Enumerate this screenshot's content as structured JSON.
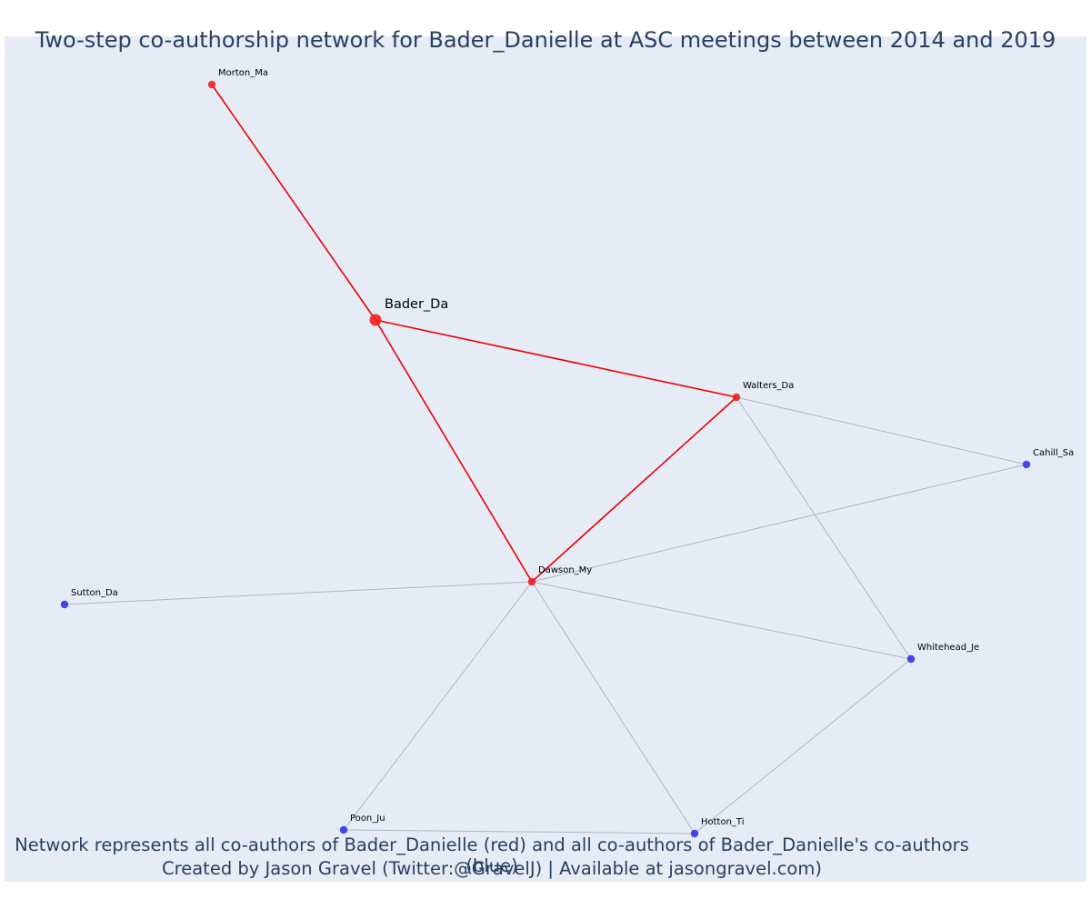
{
  "title": "Two-step co-authorship network for Bader_Danielle at ASC meetings between 2014 and 2019",
  "captions": [
    "Network represents all co-authors of Bader_Danielle (red) and all co-authors of Bader_Danielle's co-authors (blue)",
    "Created by Jason Gravel (Twitter:@GravelJ) | Available at jasongravel.com)"
  ],
  "colors": {
    "background": "#e5ecf6",
    "first_step": "#ee2222",
    "second_step": "#3333ee",
    "first_step_edge": "#ee0000",
    "second_step_edge": "#b0b4c8",
    "text": "#2a3f5f"
  },
  "nodes": [
    {
      "id": "Bader_Da",
      "group": "focus"
    },
    {
      "id": "Morton_Ma",
      "group": "first_step"
    },
    {
      "id": "Walters_Da",
      "group": "first_step"
    },
    {
      "id": "Dawson_My",
      "group": "first_step"
    },
    {
      "id": "Cahill_Sa",
      "group": "second_step"
    },
    {
      "id": "Sutton_Da",
      "group": "second_step"
    },
    {
      "id": "Whitehead_Je",
      "group": "second_step"
    },
    {
      "id": "Poon_Ju",
      "group": "second_step"
    },
    {
      "id": "Hotton_Ti",
      "group": "second_step"
    }
  ],
  "edges": [
    {
      "source": "Bader_Da",
      "target": "Morton_Ma",
      "group": "first_step"
    },
    {
      "source": "Bader_Da",
      "target": "Walters_Da",
      "group": "first_step"
    },
    {
      "source": "Bader_Da",
      "target": "Dawson_My",
      "group": "first_step"
    },
    {
      "source": "Walters_Da",
      "target": "Dawson_My",
      "group": "first_step"
    },
    {
      "source": "Walters_Da",
      "target": "Cahill_Sa",
      "group": "second_step"
    },
    {
      "source": "Walters_Da",
      "target": "Whitehead_Je",
      "group": "second_step"
    },
    {
      "source": "Dawson_My",
      "target": "Cahill_Sa",
      "group": "second_step"
    },
    {
      "source": "Dawson_My",
      "target": "Sutton_Da",
      "group": "second_step"
    },
    {
      "source": "Dawson_My",
      "target": "Whitehead_Je",
      "group": "second_step"
    },
    {
      "source": "Dawson_My",
      "target": "Poon_Ju",
      "group": "second_step"
    },
    {
      "source": "Dawson_My",
      "target": "Hotton_Ti",
      "group": "second_step"
    },
    {
      "source": "Whitehead_Je",
      "target": "Hotton_Ti",
      "group": "second_step"
    },
    {
      "source": "Poon_Ju",
      "target": "Hotton_Ti",
      "group": "second_step"
    }
  ]
}
